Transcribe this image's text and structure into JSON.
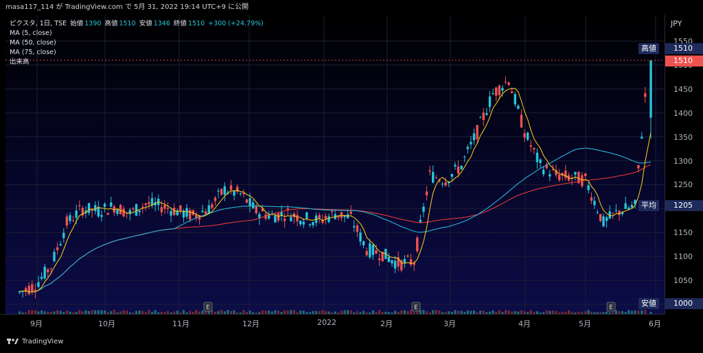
{
  "header": {
    "publisher": "masa117_114 が TradingView.com で 5月 31, 2022 19:14 UTC+9 に公開"
  },
  "legend": {
    "symbol": "ピクスタ, 1日, TSE",
    "open_label": "始値",
    "open": "1390",
    "high_label": "高値",
    "high": "1510",
    "low_label": "安値",
    "low": "1346",
    "close_label": "終値",
    "close": "1510",
    "change": "+300 (+24.79%)",
    "ma5": "MA (5, close)",
    "ma50": "MA (50, close)",
    "ma75": "MA (75, close)",
    "volume": "出来高"
  },
  "price_axis": {
    "currency": "JPY",
    "ticks": [
      "1550",
      "1500",
      "1450",
      "1400",
      "1350",
      "1300",
      "1250",
      "1200",
      "1150",
      "1100",
      "1050",
      "1000"
    ],
    "high_tag_label": "高値",
    "high_tag_value": "1510",
    "last_price": "1510",
    "avg_tag_label": "平均",
    "avg_tag_value": "1205",
    "low_tag_label": "安値",
    "low_tag_value": "1000"
  },
  "time_axis": {
    "labels": [
      "9月",
      "10月",
      "11月",
      "12月",
      "2022",
      "2月",
      "3月",
      "4月",
      "5月",
      "6月"
    ]
  },
  "earnings_markers": [
    "E",
    "E",
    "E"
  ],
  "footer": {
    "brand": "TradingView"
  },
  "colors": {
    "up": "#26c6da",
    "down": "#ef5350",
    "ma5": "#f0c419",
    "ma50": "#29b6d6",
    "ma75": "#e53935",
    "tag": "#1e2a5a"
  },
  "chart_data": {
    "type": "candlestick",
    "ylim": [
      1000,
      1560
    ],
    "y_ticks": [
      1000,
      1050,
      1100,
      1150,
      1200,
      1250,
      1300,
      1350,
      1400,
      1450,
      1500,
      1550
    ],
    "x_labels": [
      "9月",
      "10月",
      "11月",
      "12月",
      "2022",
      "2月",
      "3月",
      "4月",
      "5月",
      "6月"
    ],
    "series": [
      {
        "name": "MA (5, close)"
      },
      {
        "name": "MA (50, close)"
      },
      {
        "name": "MA (75, close)"
      }
    ],
    "close_points": [
      [
        "2021-08-24",
        1025
      ],
      [
        "2021-08-31",
        1040
      ],
      [
        "2021-09-07",
        1080
      ],
      [
        "2021-09-14",
        1170
      ],
      [
        "2021-09-21",
        1200
      ],
      [
        "2021-09-28",
        1195
      ],
      [
        "2021-10-05",
        1205
      ],
      [
        "2021-10-12",
        1190
      ],
      [
        "2021-10-19",
        1210
      ],
      [
        "2021-10-26",
        1205
      ],
      [
        "2021-11-02",
        1195
      ],
      [
        "2021-11-09",
        1185
      ],
      [
        "2021-11-16",
        1200
      ],
      [
        "2021-11-23",
        1240
      ],
      [
        "2021-11-30",
        1230
      ],
      [
        "2021-12-07",
        1195
      ],
      [
        "2021-12-14",
        1185
      ],
      [
        "2021-12-21",
        1190
      ],
      [
        "2021-12-28",
        1180
      ],
      [
        "2022-01-04",
        1175
      ],
      [
        "2022-01-11",
        1190
      ],
      [
        "2022-01-18",
        1180
      ],
      [
        "2022-01-25",
        1115
      ],
      [
        "2022-02-01",
        1105
      ],
      [
        "2022-02-08",
        1085
      ],
      [
        "2022-02-15",
        1090
      ],
      [
        "2022-02-22",
        1270
      ],
      [
        "2022-03-01",
        1260
      ],
      [
        "2022-03-08",
        1290
      ],
      [
        "2022-03-15",
        1360
      ],
      [
        "2022-03-22",
        1440
      ],
      [
        "2022-03-29",
        1470
      ],
      [
        "2022-04-05",
        1360
      ],
      [
        "2022-04-12",
        1290
      ],
      [
        "2022-04-19",
        1270
      ],
      [
        "2022-04-26",
        1265
      ],
      [
        "2022-05-02",
        1260
      ],
      [
        "2022-05-10",
        1170
      ],
      [
        "2022-05-17",
        1195
      ],
      [
        "2022-05-24",
        1205
      ],
      [
        "2022-05-30",
        1510
      ]
    ],
    "last_price": 1510,
    "high": 1510,
    "low": 1000,
    "grid": true
  }
}
